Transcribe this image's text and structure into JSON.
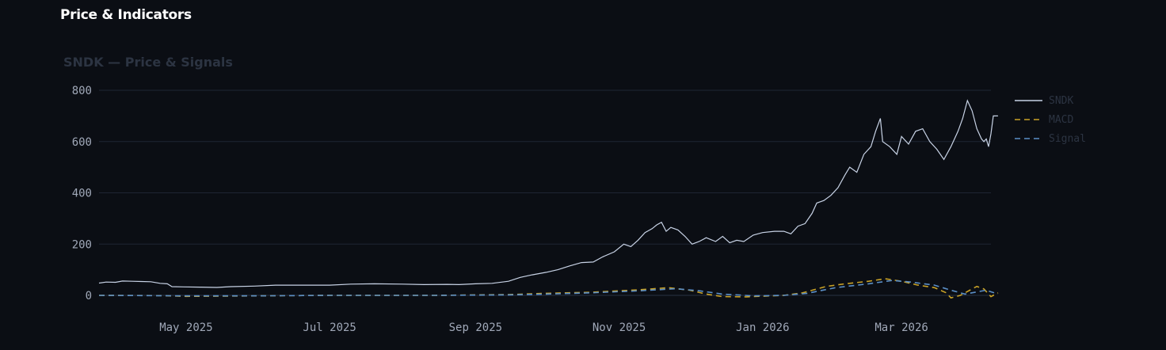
{
  "section": {
    "title": "Price & Indicators"
  },
  "chart_data": {
    "type": "line",
    "title": "SNDK — Price & Signals",
    "xlabel": "",
    "ylabel": "",
    "ylim": [
      0,
      800
    ],
    "y_ticks": [
      0,
      200,
      400,
      600,
      800
    ],
    "x_range": [
      "2025-03-25",
      "2026-04-08"
    ],
    "x_ticks": [
      {
        "date": "2025-05-01",
        "label": "May 2025"
      },
      {
        "date": "2025-07-01",
        "label": "Jul 2025"
      },
      {
        "date": "2025-09-01",
        "label": "Sep 2025"
      },
      {
        "date": "2025-11-01",
        "label": "Nov 2025"
      },
      {
        "date": "2026-01-01",
        "label": "Jan 2026"
      },
      {
        "date": "2026-03-01",
        "label": "Mar 2026"
      }
    ],
    "grid": "horizontal",
    "legend_position": "right",
    "series": [
      {
        "name": "SNDK",
        "color": "#c8d3e6",
        "dash": "solid",
        "points": [
          [
            "2025-03-25",
            48
          ],
          [
            "2025-03-28",
            52
          ],
          [
            "2025-04-01",
            51
          ],
          [
            "2025-04-04",
            56
          ],
          [
            "2025-04-08",
            55
          ],
          [
            "2025-04-12",
            54
          ],
          [
            "2025-04-16",
            53
          ],
          [
            "2025-04-20",
            47
          ],
          [
            "2025-04-23",
            45
          ],
          [
            "2025-04-25",
            34
          ],
          [
            "2025-04-30",
            33
          ],
          [
            "2025-05-07",
            32
          ],
          [
            "2025-05-14",
            31
          ],
          [
            "2025-05-20",
            34
          ],
          [
            "2025-05-30",
            36
          ],
          [
            "2025-06-08",
            40
          ],
          [
            "2025-06-20",
            40
          ],
          [
            "2025-07-01",
            40
          ],
          [
            "2025-07-10",
            44
          ],
          [
            "2025-07-20",
            45
          ],
          [
            "2025-08-01",
            44
          ],
          [
            "2025-08-10",
            42
          ],
          [
            "2025-08-20",
            43
          ],
          [
            "2025-08-25",
            42
          ],
          [
            "2025-09-01",
            45
          ],
          [
            "2025-09-08",
            47
          ],
          [
            "2025-09-15",
            55
          ],
          [
            "2025-09-20",
            70
          ],
          [
            "2025-09-25",
            80
          ],
          [
            "2025-10-01",
            90
          ],
          [
            "2025-10-06",
            100
          ],
          [
            "2025-10-11",
            115
          ],
          [
            "2025-10-16",
            128
          ],
          [
            "2025-10-21",
            130
          ],
          [
            "2025-10-25",
            150
          ],
          [
            "2025-10-30",
            170
          ],
          [
            "2025-11-03",
            200
          ],
          [
            "2025-11-06",
            190
          ],
          [
            "2025-11-09",
            215
          ],
          [
            "2025-11-12",
            245
          ],
          [
            "2025-11-15",
            260
          ],
          [
            "2025-11-17",
            275
          ],
          [
            "2025-11-19",
            285
          ],
          [
            "2025-11-21",
            250
          ],
          [
            "2025-11-23",
            265
          ],
          [
            "2025-11-26",
            255
          ],
          [
            "2025-11-29",
            230
          ],
          [
            "2025-12-02",
            200
          ],
          [
            "2025-12-05",
            210
          ],
          [
            "2025-12-08",
            225
          ],
          [
            "2025-12-12",
            210
          ],
          [
            "2025-12-15",
            230
          ],
          [
            "2025-12-18",
            205
          ],
          [
            "2025-12-21",
            215
          ],
          [
            "2025-12-24",
            210
          ],
          [
            "2025-12-28",
            235
          ],
          [
            "2026-01-01",
            245
          ],
          [
            "2026-01-06",
            250
          ],
          [
            "2026-01-10",
            250
          ],
          [
            "2026-01-13",
            240
          ],
          [
            "2026-01-16",
            270
          ],
          [
            "2026-01-19",
            280
          ],
          [
            "2026-01-22",
            320
          ],
          [
            "2026-01-24",
            360
          ],
          [
            "2026-01-27",
            370
          ],
          [
            "2026-01-30",
            390
          ],
          [
            "2026-02-02",
            420
          ],
          [
            "2026-02-05",
            470
          ],
          [
            "2026-02-07",
            500
          ],
          [
            "2026-02-10",
            480
          ],
          [
            "2026-02-13",
            550
          ],
          [
            "2026-02-16",
            580
          ],
          [
            "2026-02-18",
            640
          ],
          [
            "2026-02-20",
            690
          ],
          [
            "2026-02-21",
            600
          ],
          [
            "2026-02-24",
            580
          ],
          [
            "2026-02-27",
            550
          ],
          [
            "2026-03-01",
            620
          ],
          [
            "2026-03-04",
            590
          ],
          [
            "2026-03-07",
            640
          ],
          [
            "2026-03-10",
            650
          ],
          [
            "2026-03-13",
            600
          ],
          [
            "2026-03-16",
            570
          ],
          [
            "2026-03-19",
            530
          ],
          [
            "2026-03-22",
            580
          ],
          [
            "2026-03-25",
            640
          ],
          [
            "2026-03-27",
            690
          ],
          [
            "2026-03-29",
            760
          ],
          [
            "2026-03-31",
            720
          ],
          [
            "2026-04-02",
            650
          ],
          [
            "2026-04-04",
            610
          ],
          [
            "2026-04-05",
            600
          ],
          [
            "2026-04-06",
            610
          ],
          [
            "2026-04-07",
            580
          ],
          [
            "2026-04-08",
            630
          ],
          [
            "2026-04-09",
            700
          ],
          [
            "2026-04-11",
            700
          ]
        ]
      },
      {
        "name": "MACD",
        "color": "#c9a227",
        "dash": "dashed",
        "points": [
          [
            "2025-03-25",
            0
          ],
          [
            "2025-04-20",
            -1
          ],
          [
            "2025-05-01",
            -4
          ],
          [
            "2025-06-01",
            -2
          ],
          [
            "2025-07-01",
            0
          ],
          [
            "2025-08-15",
            0
          ],
          [
            "2025-09-15",
            3
          ],
          [
            "2025-10-01",
            8
          ],
          [
            "2025-10-20",
            12
          ],
          [
            "2025-11-10",
            22
          ],
          [
            "2025-11-22",
            30
          ],
          [
            "2025-12-01",
            20
          ],
          [
            "2025-12-08",
            5
          ],
          [
            "2025-12-15",
            -5
          ],
          [
            "2025-12-25",
            -6
          ],
          [
            "2026-01-10",
            0
          ],
          [
            "2026-01-18",
            10
          ],
          [
            "2026-01-28",
            35
          ],
          [
            "2026-02-05",
            45
          ],
          [
            "2026-02-15",
            55
          ],
          [
            "2026-02-22",
            65
          ],
          [
            "2026-03-01",
            55
          ],
          [
            "2026-03-08",
            40
          ],
          [
            "2026-03-15",
            30
          ],
          [
            "2026-03-20",
            10
          ],
          [
            "2026-03-22",
            -10
          ],
          [
            "2026-03-26",
            0
          ],
          [
            "2026-03-30",
            20
          ],
          [
            "2026-04-02",
            35
          ],
          [
            "2026-04-05",
            25
          ],
          [
            "2026-04-08",
            -5
          ],
          [
            "2026-04-11",
            10
          ]
        ]
      },
      {
        "name": "Signal",
        "color": "#5b8fc7",
        "dash": "dashed",
        "points": [
          [
            "2025-03-25",
            0
          ],
          [
            "2025-05-01",
            -2
          ],
          [
            "2025-06-01",
            -2
          ],
          [
            "2025-07-01",
            0
          ],
          [
            "2025-08-15",
            0
          ],
          [
            "2025-09-15",
            2
          ],
          [
            "2025-10-01",
            5
          ],
          [
            "2025-10-20",
            10
          ],
          [
            "2025-11-10",
            18
          ],
          [
            "2025-11-25",
            26
          ],
          [
            "2025-12-05",
            18
          ],
          [
            "2025-12-15",
            5
          ],
          [
            "2025-12-28",
            -2
          ],
          [
            "2026-01-10",
            0
          ],
          [
            "2026-01-20",
            8
          ],
          [
            "2026-02-01",
            30
          ],
          [
            "2026-02-15",
            45
          ],
          [
            "2026-02-25",
            58
          ],
          [
            "2026-03-05",
            52
          ],
          [
            "2026-03-15",
            40
          ],
          [
            "2026-03-22",
            20
          ],
          [
            "2026-03-28",
            5
          ],
          [
            "2026-04-03",
            15
          ],
          [
            "2026-04-06",
            20
          ],
          [
            "2026-04-11",
            5
          ]
        ]
      }
    ]
  }
}
